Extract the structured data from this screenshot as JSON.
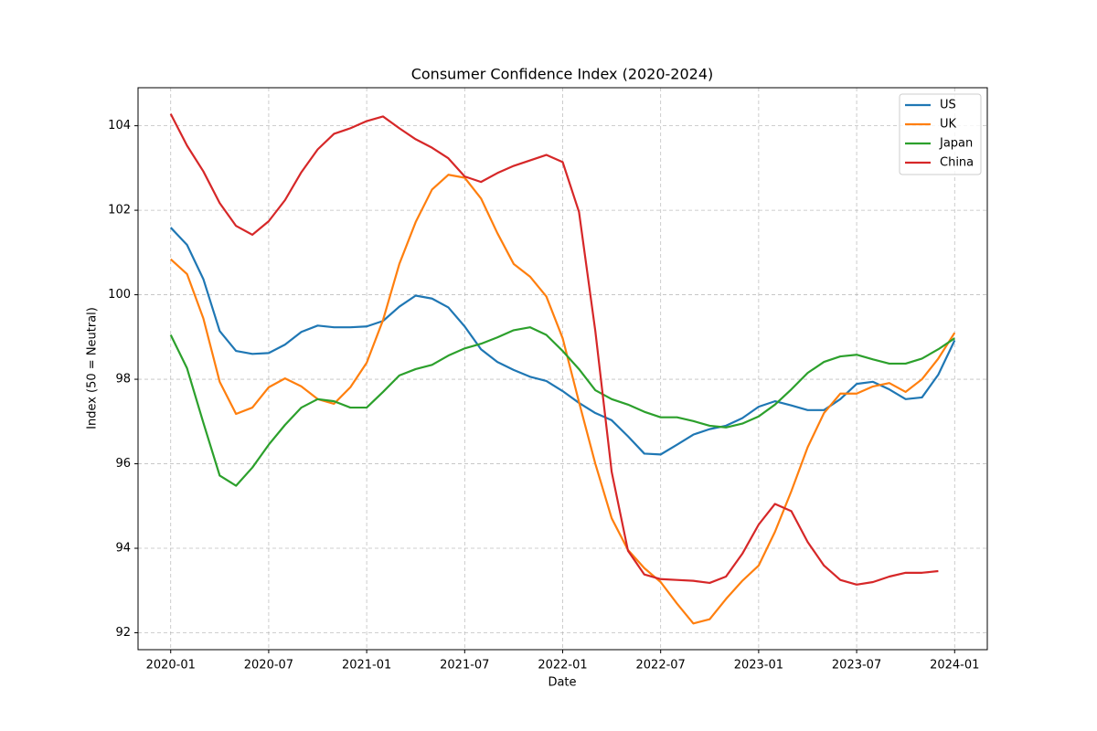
{
  "chart_data": {
    "type": "line",
    "title": "Consumer Confidence Index (2020-2024)",
    "xlabel": "Date",
    "ylabel": "Index (50 = Neutral)",
    "x": [
      "2020-01",
      "2020-02",
      "2020-03",
      "2020-04",
      "2020-05",
      "2020-06",
      "2020-07",
      "2020-08",
      "2020-09",
      "2020-10",
      "2020-11",
      "2020-12",
      "2021-01",
      "2021-02",
      "2021-03",
      "2021-04",
      "2021-05",
      "2021-06",
      "2021-07",
      "2021-08",
      "2021-09",
      "2021-10",
      "2021-11",
      "2021-12",
      "2022-01",
      "2022-02",
      "2022-03",
      "2022-04",
      "2022-05",
      "2022-06",
      "2022-07",
      "2022-08",
      "2022-09",
      "2022-10",
      "2022-11",
      "2022-12",
      "2023-01",
      "2023-02",
      "2023-03",
      "2023-04",
      "2023-05",
      "2023-06",
      "2023-07",
      "2023-08",
      "2023-09",
      "2023-10",
      "2023-11",
      "2023-12",
      "2024-01"
    ],
    "series": [
      {
        "name": "US",
        "color": "#1f77b4",
        "values": [
          101.59,
          101.18,
          100.37,
          99.14,
          98.67,
          98.6,
          98.62,
          98.82,
          99.12,
          99.27,
          99.23,
          99.23,
          99.25,
          99.38,
          99.72,
          99.98,
          99.91,
          99.7,
          99.25,
          98.71,
          98.41,
          98.22,
          98.06,
          97.96,
          97.72,
          97.44,
          97.2,
          97.03,
          96.65,
          96.24,
          96.22,
          96.45,
          96.69,
          96.82,
          96.9,
          97.08,
          97.35,
          97.48,
          97.38,
          97.27,
          97.27,
          97.53,
          97.89,
          97.94,
          97.76,
          97.53,
          97.57,
          98.11,
          98.92
        ]
      },
      {
        "name": "UK",
        "color": "#ff7f0e",
        "values": [
          100.84,
          100.49,
          99.44,
          97.94,
          97.18,
          97.33,
          97.81,
          98.02,
          97.83,
          97.53,
          97.42,
          97.81,
          98.39,
          99.4,
          100.73,
          101.72,
          102.49,
          102.84,
          102.77,
          102.28,
          101.46,
          100.73,
          100.43,
          99.96,
          98.97,
          97.46,
          96.0,
          94.71,
          93.96,
          93.53,
          93.2,
          92.69,
          92.22,
          92.32,
          92.8,
          93.23,
          93.59,
          94.39,
          95.35,
          96.39,
          97.2,
          97.66,
          97.66,
          97.83,
          97.91,
          97.7,
          98.0,
          98.49,
          99.1
        ]
      },
      {
        "name": "Japan",
        "color": "#2ca02c",
        "values": [
          99.05,
          98.26,
          96.97,
          95.72,
          95.48,
          95.91,
          96.45,
          96.92,
          97.33,
          97.53,
          97.48,
          97.33,
          97.33,
          97.7,
          98.09,
          98.24,
          98.34,
          98.56,
          98.73,
          98.84,
          98.99,
          99.16,
          99.23,
          99.05,
          98.67,
          98.24,
          97.74,
          97.53,
          97.4,
          97.23,
          97.1,
          97.1,
          97.01,
          96.9,
          96.86,
          96.95,
          97.12,
          97.4,
          97.76,
          98.15,
          98.41,
          98.54,
          98.58,
          98.47,
          98.37,
          98.37,
          98.49,
          98.71,
          98.97
        ]
      },
      {
        "name": "China",
        "color": "#d62728",
        "values": [
          104.28,
          103.53,
          102.92,
          102.17,
          101.63,
          101.42,
          101.74,
          102.24,
          102.9,
          103.44,
          103.81,
          103.94,
          104.11,
          104.22,
          103.94,
          103.68,
          103.48,
          103.23,
          102.8,
          102.67,
          102.88,
          103.05,
          103.18,
          103.31,
          103.14,
          101.96,
          99.14,
          95.81,
          93.94,
          93.38,
          93.27,
          93.25,
          93.23,
          93.18,
          93.33,
          93.87,
          94.56,
          95.05,
          94.88,
          94.15,
          93.59,
          93.25,
          93.14,
          93.2,
          93.33,
          93.42,
          93.42,
          93.46,
          null
        ]
      }
    ],
    "xlim": [
      "2019-11",
      "2024-03"
    ],
    "xticks": [
      "2020-01",
      "2020-07",
      "2021-01",
      "2021-07",
      "2022-01",
      "2022-07",
      "2023-01",
      "2023-07",
      "2024-01"
    ],
    "ylim": [
      91.6,
      104.9
    ],
    "yticks": [
      92,
      94,
      96,
      98,
      100,
      102,
      104
    ],
    "grid": true,
    "legend": "upper right"
  }
}
